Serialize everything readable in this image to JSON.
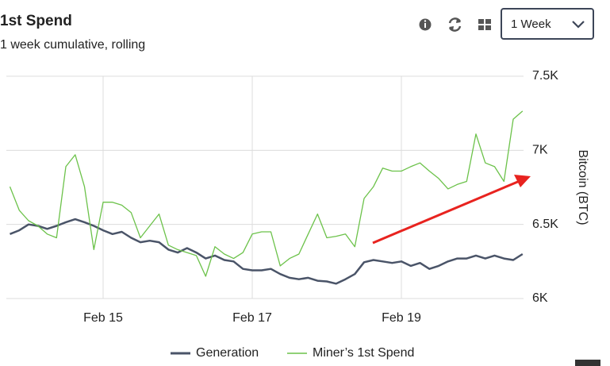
{
  "header": {
    "title": "1st Spend",
    "subtitle": "1 week cumulative, rolling",
    "range_select": "1 Week"
  },
  "chart_data": {
    "type": "line",
    "categories": [
      null,
      null,
      null,
      null,
      null,
      null,
      null,
      null,
      null,
      null,
      "Feb 15",
      null,
      null,
      null,
      null,
      null,
      null,
      null,
      null,
      null,
      null,
      null,
      null,
      null,
      null,
      null,
      "Feb 17",
      null,
      null,
      null,
      null,
      null,
      null,
      null,
      null,
      null,
      null,
      null,
      null,
      null,
      null,
      null,
      "Feb 19",
      null,
      null,
      null,
      null,
      null,
      null,
      null,
      null,
      null,
      null,
      null,
      null,
      null
    ],
    "series": [
      {
        "name": "Generation",
        "color": "#4a5468",
        "values": [
          6435,
          6460,
          6500,
          6490,
          6470,
          6490,
          6515,
          6535,
          6515,
          6490,
          6460,
          6435,
          6450,
          6410,
          6380,
          6390,
          6380,
          6330,
          6310,
          6340,
          6310,
          6270,
          6290,
          6260,
          6250,
          6200,
          6190,
          6190,
          6200,
          6165,
          6140,
          6130,
          6140,
          6120,
          6115,
          6100,
          6130,
          6165,
          6245,
          6260,
          6250,
          6240,
          6250,
          6220,
          6240,
          6200,
          6220,
          6250,
          6270,
          6270,
          6290,
          6270,
          6290,
          6270,
          6260,
          6300
        ]
      },
      {
        "name": "Miner’s 1st Spend",
        "color": "#6cc24a",
        "values": [
          6755,
          6595,
          6525,
          6490,
          6435,
          6410,
          6890,
          6970,
          6755,
          6330,
          6650,
          6650,
          6630,
          6580,
          6410,
          6490,
          6570,
          6360,
          6330,
          6310,
          6290,
          6150,
          6350,
          6300,
          6270,
          6310,
          6435,
          6450,
          6450,
          6220,
          6270,
          6300,
          6435,
          6570,
          6410,
          6420,
          6435,
          6350,
          6675,
          6755,
          6880,
          6860,
          6860,
          6890,
          6915,
          6860,
          6810,
          6740,
          6770,
          6790,
          7110,
          6915,
          6890,
          6790,
          7210,
          7265
        ]
      }
    ],
    "y_label": "Bitcoin (BTC)",
    "ylim": [
      6000,
      7500
    ],
    "yticks": [
      {
        "value": 6000,
        "label": "6K"
      },
      {
        "value": 6500,
        "label": "6.5K"
      },
      {
        "value": 7000,
        "label": "7K"
      },
      {
        "value": 7500,
        "label": "7.5K"
      }
    ],
    "grid": true,
    "legend": "bottom"
  }
}
